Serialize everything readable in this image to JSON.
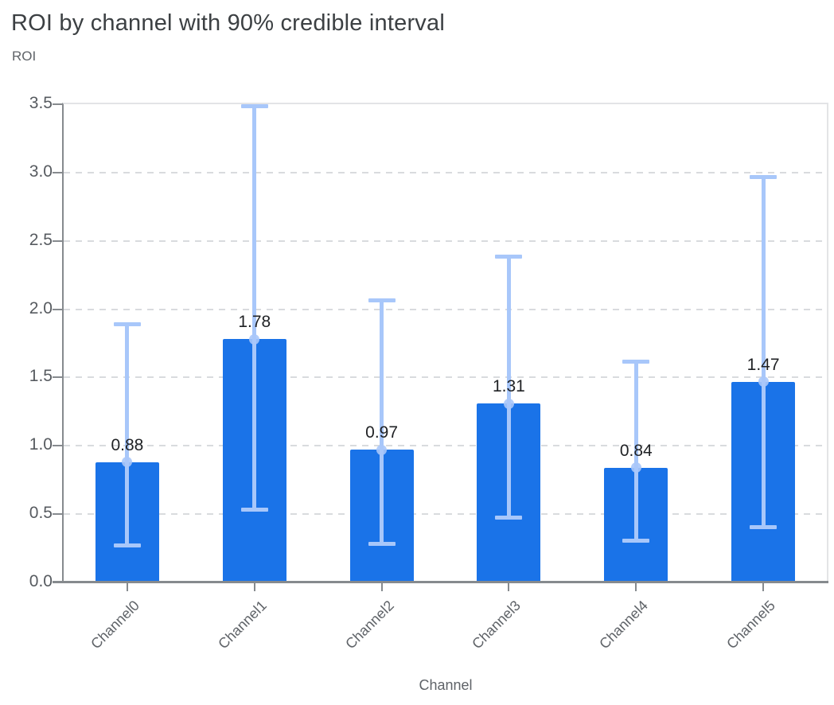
{
  "chart_data": {
    "type": "bar",
    "title": "ROI by channel with 90% credible interval",
    "ylabel": "ROI",
    "xlabel": "Channel",
    "interval_label": "90% credible interval",
    "categories": [
      "Channel0",
      "Channel1",
      "Channel2",
      "Channel3",
      "Channel4",
      "Channel5"
    ],
    "values": [
      0.88,
      1.78,
      0.97,
      1.31,
      0.84,
      1.47
    ],
    "value_labels": [
      "0.88",
      "1.78",
      "0.97",
      "1.31",
      "0.84",
      "1.47"
    ],
    "ci_low": [
      0.27,
      0.53,
      0.28,
      0.47,
      0.3,
      0.4
    ],
    "ci_high": [
      1.89,
      3.49,
      2.07,
      2.39,
      1.62,
      2.97
    ],
    "yticks": [
      0.0,
      0.5,
      1.0,
      1.5,
      2.0,
      2.5,
      3.0,
      3.5
    ],
    "ytick_labels": [
      "0.0",
      "0.5",
      "1.0",
      "1.5",
      "2.0",
      "2.5",
      "3.0",
      "3.5"
    ],
    "ylim": [
      0,
      3.5
    ],
    "grid": "horizontal-dashed",
    "legend": "none",
    "colors": {
      "bar": "#1a73e8",
      "error_bar": "#a8c7fa",
      "value_label": "#1f2124",
      "title": "#3c4043",
      "axis_text": "#5f6368",
      "gridline": "#d9dbde",
      "plot_border": "#e3e4e6",
      "axis_line": "#868a8e"
    }
  }
}
